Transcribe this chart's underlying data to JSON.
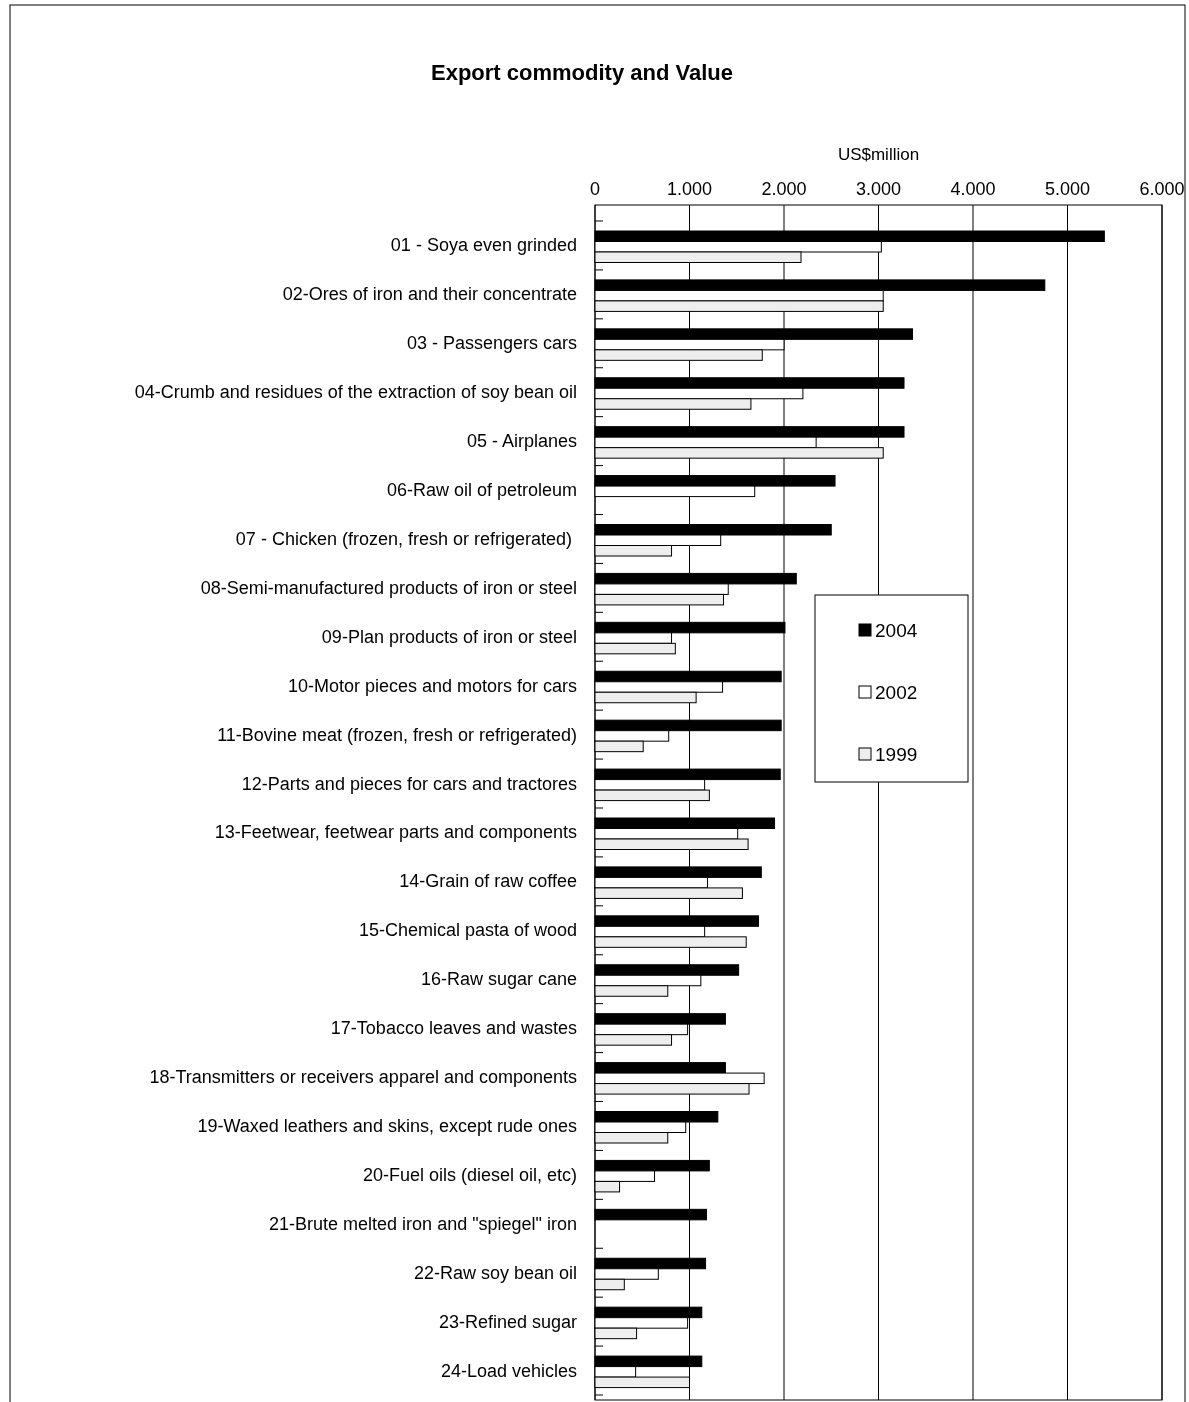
{
  "chart_data": {
    "type": "bar",
    "orientation": "horizontal",
    "title": "Export commodity and Value",
    "xlabel": "US$million",
    "categories": [
      "01 - Soya even grinded",
      "02-Ores of iron and their concentrate",
      "03 - Passengers cars",
      "04-Crumb and residues of the extraction of soy bean oil",
      "05 - Airplanes",
      "06-Raw oil of petroleum",
      "07 - Chicken (frozen, fresh or refrigerated) ",
      "08-Semi-manufactured products of iron or steel",
      "09-Plan products of iron or steel",
      "10-Motor pieces and motors for cars",
      "11-Bovine meat (frozen, fresh or refrigerated)",
      "12-Parts and pieces for cars and tractores",
      "13-Feetwear, feetwear parts and components",
      "14-Grain of raw coffee",
      "15-Chemical pasta of wood",
      "16-Raw sugar cane",
      "17-Tobacco leaves and wastes",
      "18-Transmitters or receivers apparel and components",
      "19-Waxed leathers and skins, except rude ones",
      "20-Fuel oils (diesel oil, etc)",
      "21-Brute melted iron and \"spiegel\" iron",
      "22-Raw soy bean oil",
      "23-Refined sugar",
      "24-Load vehicles"
    ],
    "series": [
      {
        "name": "2004",
        "color": "#000000",
        "values": [
          5390,
          4760,
          3360,
          3270,
          3270,
          2540,
          2500,
          2130,
          2010,
          1970,
          1970,
          1960,
          1900,
          1760,
          1730,
          1520,
          1380,
          1380,
          1300,
          1210,
          1180,
          1170,
          1130,
          1130
        ]
      },
      {
        "name": "2002",
        "color": "#ffffff",
        "values": [
          3030,
          3050,
          2000,
          2200,
          2340,
          1690,
          1330,
          1410,
          810,
          1350,
          780,
          1160,
          1510,
          1190,
          1160,
          1120,
          980,
          1790,
          960,
          630,
          null,
          670,
          980,
          430
        ]
      },
      {
        "name": "1999",
        "color": "#eeeeee",
        "values": [
          2180,
          3050,
          1770,
          1650,
          3050,
          null,
          810,
          1360,
          850,
          1070,
          510,
          1210,
          1620,
          1560,
          1600,
          770,
          810,
          1630,
          770,
          260,
          null,
          310,
          440,
          1000
        ]
      }
    ],
    "xlim": [
      0,
      6000
    ],
    "xticks": [
      0,
      {
        "value": 1000,
        "label": "1.000"
      },
      {
        "value": 2000,
        "label": "2.000"
      },
      {
        "value": 3000,
        "label": "3.000"
      },
      {
        "value": 4000,
        "label": "4.000"
      },
      {
        "value": 5000,
        "label": "5.000"
      },
      {
        "value": 6000,
        "label": "6.000"
      }
    ],
    "grid": "x",
    "legend": "right"
  }
}
